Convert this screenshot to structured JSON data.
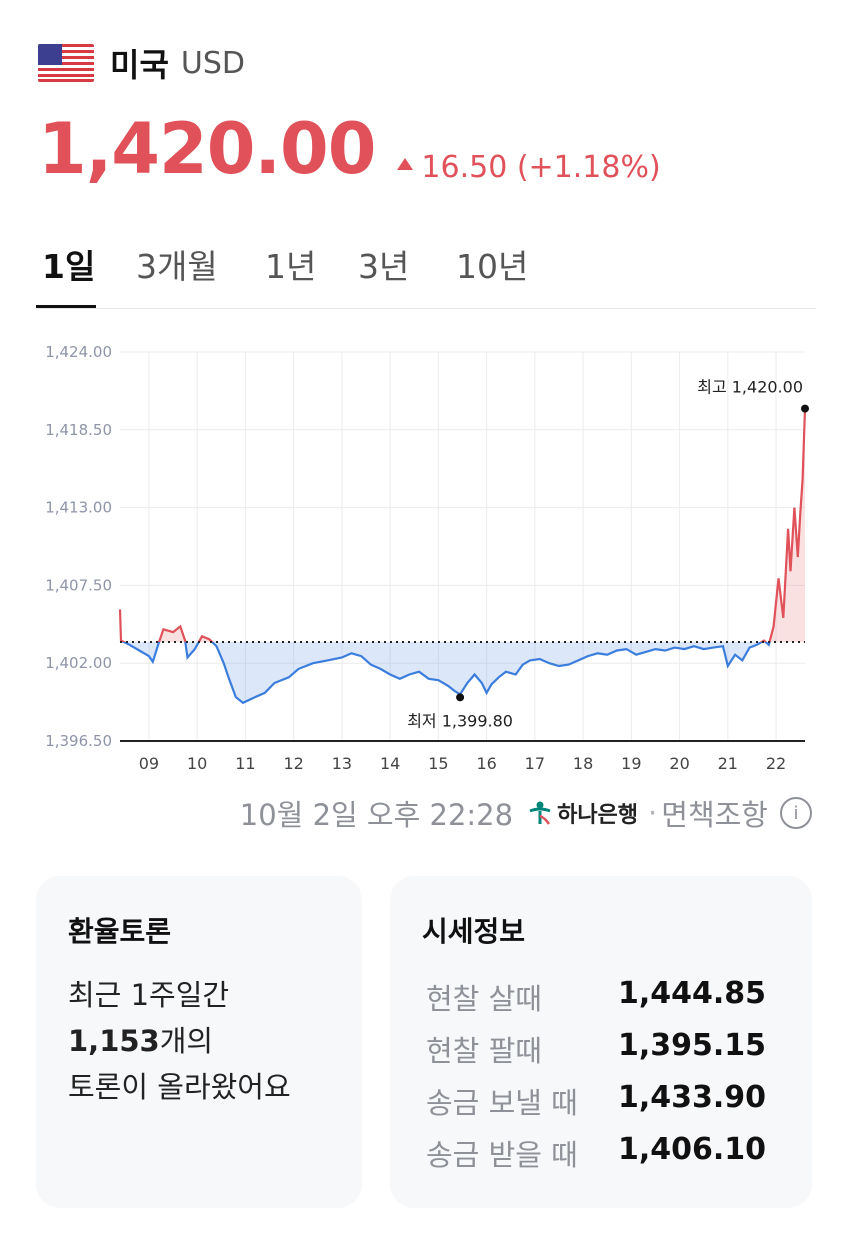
{
  "header": {
    "country": "미국",
    "currency": "USD"
  },
  "price": {
    "value": "1,420.00",
    "change": "16.50 (+1.18%)",
    "color": "#e0515a"
  },
  "tabs": [
    {
      "label": "1일",
      "active": true
    },
    {
      "label": "3개월",
      "active": false
    },
    {
      "label": "1년",
      "active": false
    },
    {
      "label": "3년",
      "active": false
    },
    {
      "label": "10년",
      "active": false
    }
  ],
  "chart_data": {
    "type": "line",
    "y_ticks": [
      "1,424.00",
      "1,418.50",
      "1,413.00",
      "1,407.50",
      "1,402.00",
      "1,396.50"
    ],
    "x_ticks": [
      "09",
      "10",
      "11",
      "12",
      "13",
      "14",
      "15",
      "16",
      "17",
      "18",
      "19",
      "20",
      "21",
      "22"
    ],
    "ylim": [
      1396.5,
      1424.0
    ],
    "baseline": 1403.5,
    "high_label": "최고 1,420.00",
    "low_label": "최저 1,399.80",
    "high": {
      "x": 22.6,
      "y": 1420.0
    },
    "low": {
      "x": 15.45,
      "y": 1399.8
    },
    "up_color": "#e0515a",
    "down_color": "#3b7ddd",
    "series_points": [
      [
        8.4,
        1405.8
      ],
      [
        8.42,
        1403.6
      ],
      [
        8.6,
        1403.3
      ],
      [
        8.8,
        1402.9
      ],
      [
        9.0,
        1402.5
      ],
      [
        9.08,
        1402.1
      ],
      [
        9.2,
        1403.4
      ],
      [
        9.3,
        1404.4
      ],
      [
        9.5,
        1404.2
      ],
      [
        9.65,
        1404.6
      ],
      [
        9.75,
        1403.6
      ],
      [
        9.8,
        1402.4
      ],
      [
        9.95,
        1403.0
      ],
      [
        10.1,
        1403.9
      ],
      [
        10.25,
        1403.7
      ],
      [
        10.4,
        1403.2
      ],
      [
        10.55,
        1402.0
      ],
      [
        10.65,
        1401.0
      ],
      [
        10.8,
        1399.6
      ],
      [
        10.95,
        1399.2
      ],
      [
        11.2,
        1399.6
      ],
      [
        11.4,
        1399.9
      ],
      [
        11.6,
        1400.6
      ],
      [
        11.9,
        1401.0
      ],
      [
        12.1,
        1401.6
      ],
      [
        12.4,
        1402.0
      ],
      [
        12.7,
        1402.2
      ],
      [
        13.0,
        1402.4
      ],
      [
        13.2,
        1402.7
      ],
      [
        13.4,
        1402.5
      ],
      [
        13.6,
        1401.9
      ],
      [
        13.8,
        1401.6
      ],
      [
        14.0,
        1401.2
      ],
      [
        14.2,
        1400.9
      ],
      [
        14.4,
        1401.2
      ],
      [
        14.6,
        1401.4
      ],
      [
        14.8,
        1400.9
      ],
      [
        15.0,
        1400.8
      ],
      [
        15.2,
        1400.4
      ],
      [
        15.35,
        1400.0
      ],
      [
        15.45,
        1399.8
      ],
      [
        15.6,
        1400.6
      ],
      [
        15.75,
        1401.2
      ],
      [
        15.9,
        1400.6
      ],
      [
        16.0,
        1399.9
      ],
      [
        16.1,
        1400.5
      ],
      [
        16.25,
        1401.0
      ],
      [
        16.4,
        1401.4
      ],
      [
        16.6,
        1401.2
      ],
      [
        16.75,
        1401.9
      ],
      [
        16.9,
        1402.2
      ],
      [
        17.1,
        1402.3
      ],
      [
        17.3,
        1402.0
      ],
      [
        17.5,
        1401.8
      ],
      [
        17.7,
        1401.9
      ],
      [
        17.9,
        1402.2
      ],
      [
        18.1,
        1402.5
      ],
      [
        18.3,
        1402.7
      ],
      [
        18.5,
        1402.6
      ],
      [
        18.7,
        1402.9
      ],
      [
        18.9,
        1403.0
      ],
      [
        19.1,
        1402.6
      ],
      [
        19.3,
        1402.8
      ],
      [
        19.5,
        1403.0
      ],
      [
        19.7,
        1402.9
      ],
      [
        19.9,
        1403.1
      ],
      [
        20.1,
        1403.0
      ],
      [
        20.3,
        1403.2
      ],
      [
        20.5,
        1403.0
      ],
      [
        20.7,
        1403.1
      ],
      [
        20.9,
        1403.2
      ],
      [
        21.0,
        1401.8
      ],
      [
        21.15,
        1402.6
      ],
      [
        21.3,
        1402.2
      ],
      [
        21.45,
        1403.1
      ],
      [
        21.6,
        1403.3
      ],
      [
        21.75,
        1403.6
      ],
      [
        21.85,
        1403.3
      ],
      [
        21.95,
        1404.6
      ],
      [
        22.05,
        1408.0
      ],
      [
        22.15,
        1405.2
      ],
      [
        22.25,
        1411.5
      ],
      [
        22.3,
        1408.5
      ],
      [
        22.38,
        1413.0
      ],
      [
        22.45,
        1409.5
      ],
      [
        22.5,
        1412.5
      ],
      [
        22.55,
        1415.0
      ],
      [
        22.6,
        1420.0
      ]
    ]
  },
  "source": {
    "timestamp": "10월 2일 오후 22:28",
    "bank": "하나은행",
    "disclaimer": "면책조항",
    "bank_color": "#00857a"
  },
  "discussion": {
    "title": "환율토론",
    "line1": "최근 1주일간",
    "count": "1,153",
    "count_suffix": "개의",
    "line3": "토론이 올라왔어요"
  },
  "rates": {
    "title": "시세정보",
    "items": [
      {
        "label": "현찰 살때",
        "value": "1,444.85"
      },
      {
        "label": "현찰 팔때",
        "value": "1,395.15"
      },
      {
        "label": "송금 보낼 때",
        "value": "1,433.90"
      },
      {
        "label": "송금 받을 때",
        "value": "1,406.10"
      }
    ]
  }
}
